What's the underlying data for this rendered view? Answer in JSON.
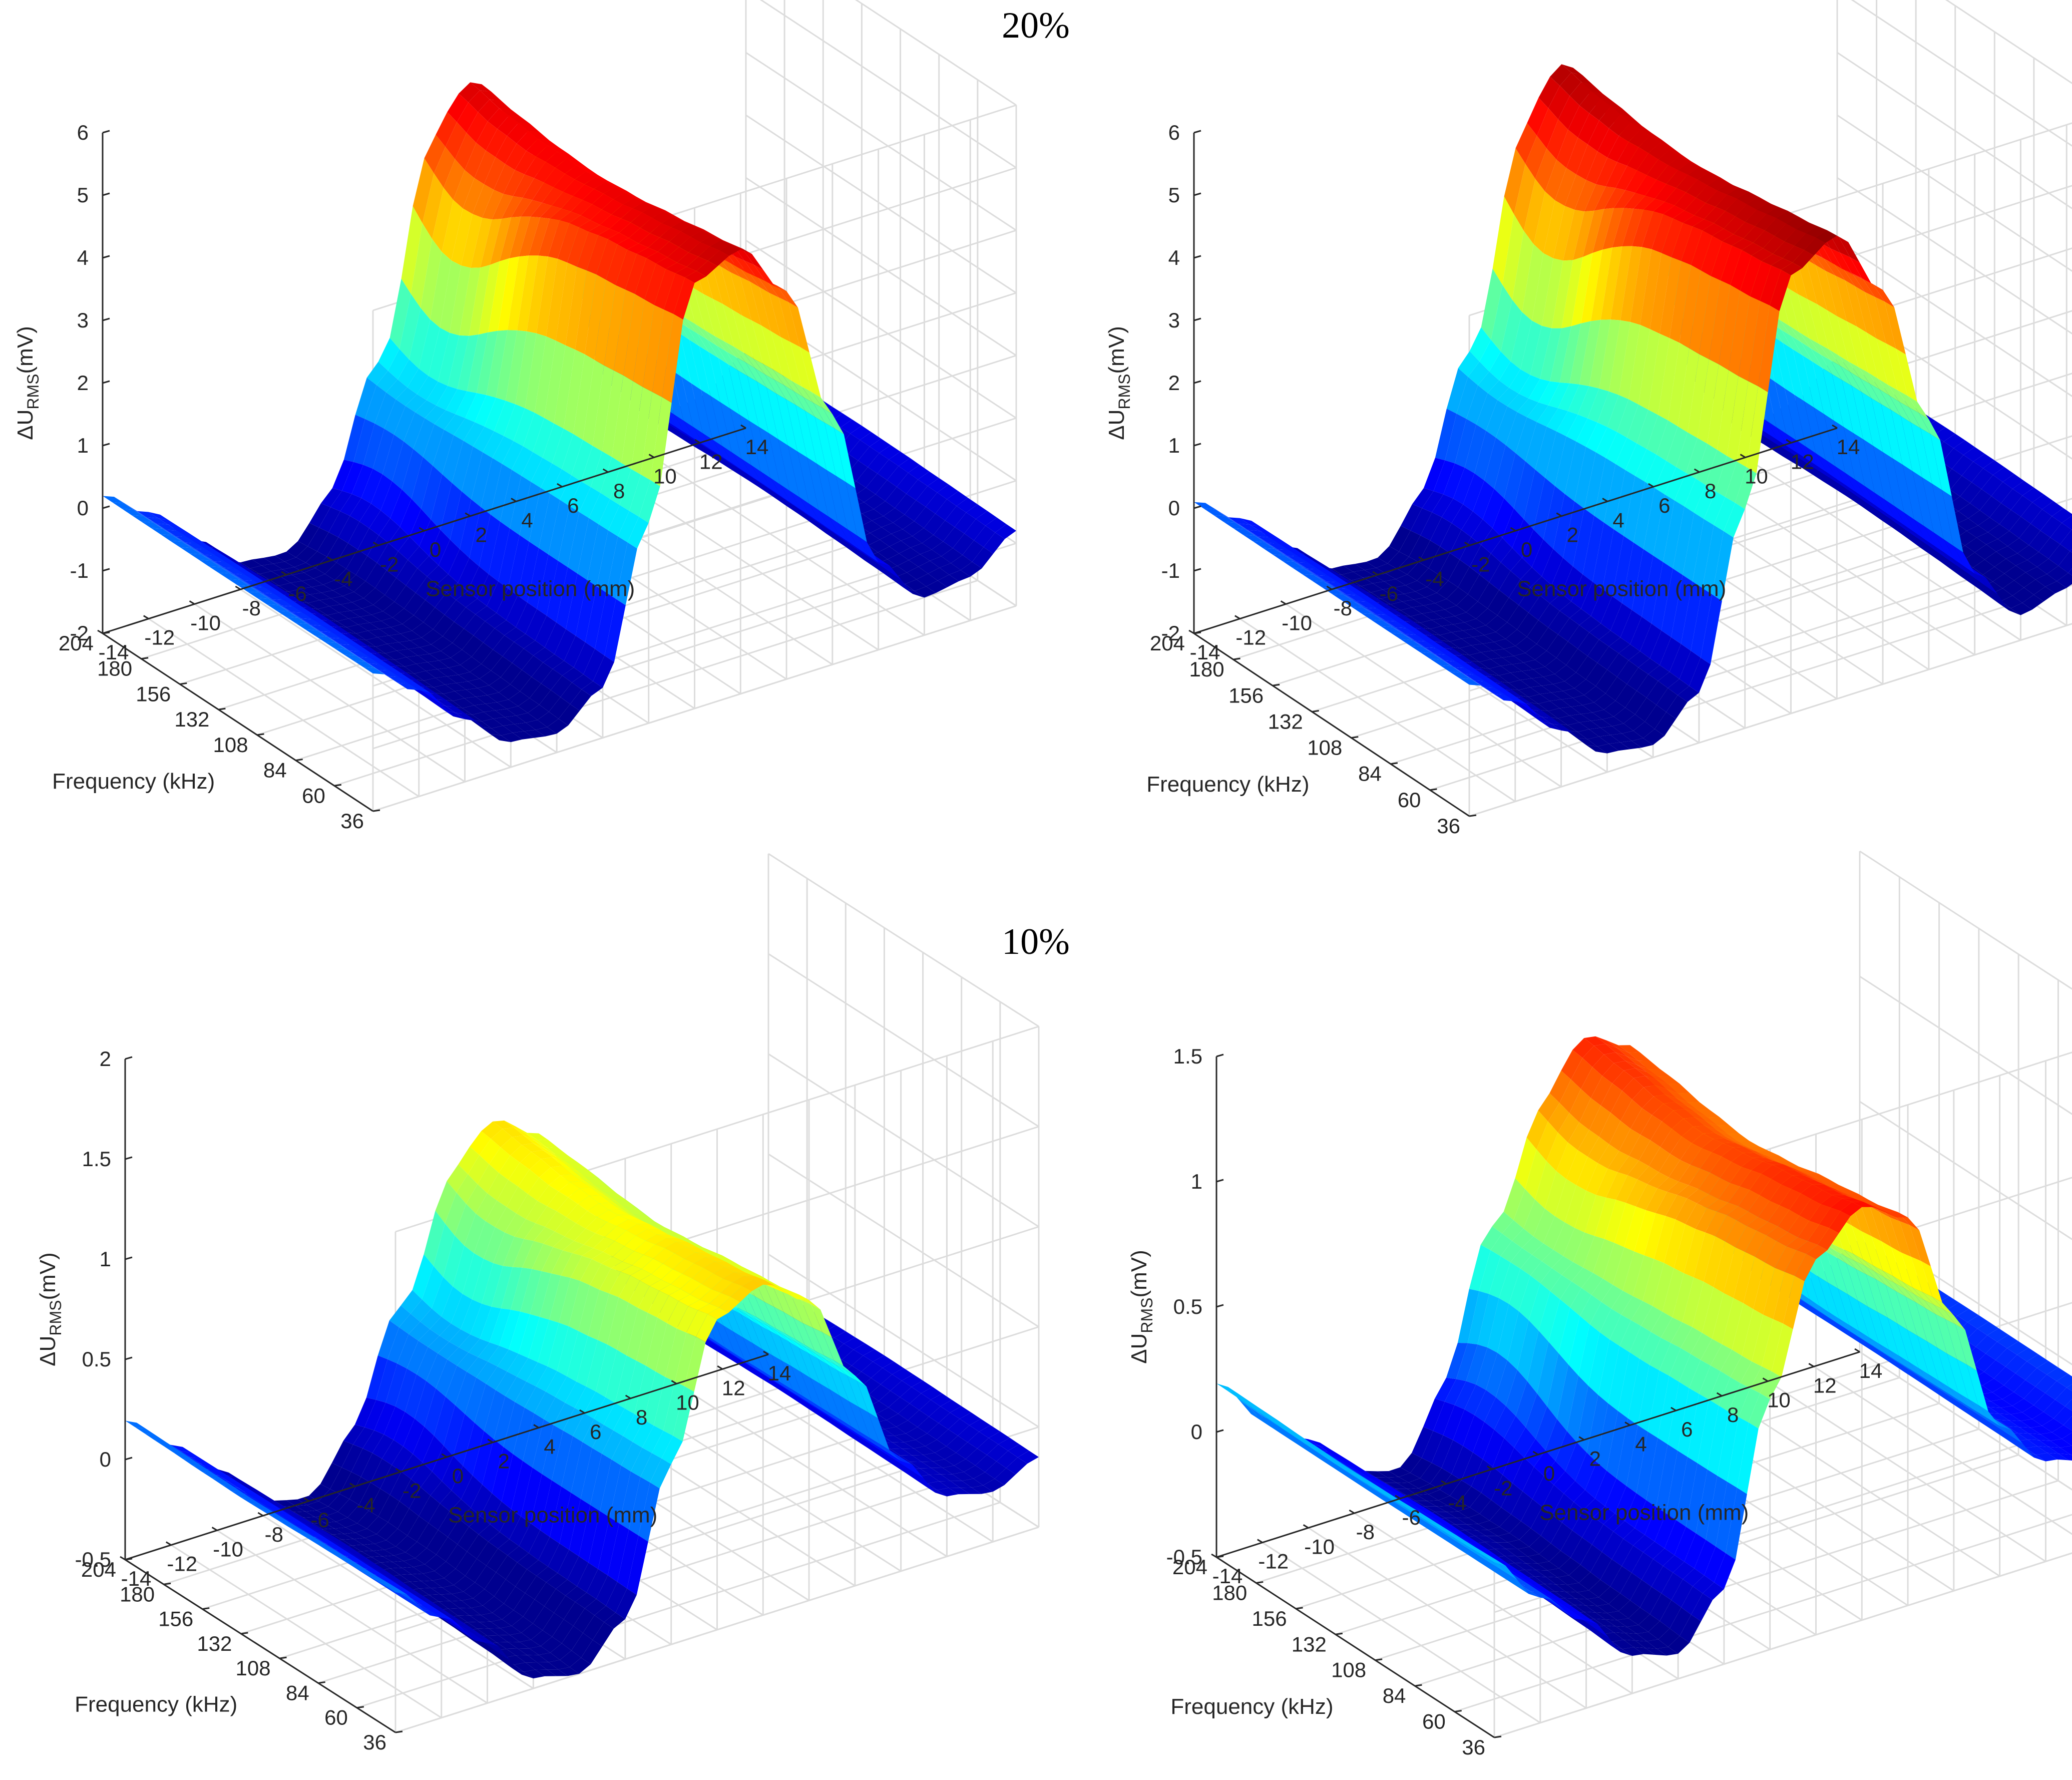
{
  "figure": {
    "sections": [
      {
        "label": "20%"
      },
      {
        "label": "10%"
      }
    ]
  },
  "chart_data": [
    {
      "type": "surface",
      "section": "20%",
      "panel": "left",
      "xlabel": "Sensor position (mm)",
      "ylabel": "Frequency (kHz)",
      "zlabel": "ΔU_RMS(mV)",
      "zlabel_main": "ΔU",
      "zlabel_sub": "RMS",
      "zlabel_tail": "(mV)",
      "x_ticks": [
        "-14",
        "-12",
        "-10",
        "-8",
        "-6",
        "-4",
        "-2",
        "0",
        "2",
        "4",
        "6",
        "8",
        "10",
        "12",
        "14"
      ],
      "y_ticks": [
        "204",
        "180",
        "156",
        "132",
        "108",
        "84",
        "60",
        "36"
      ],
      "z_ticks": [
        "-2",
        "-1",
        "0",
        "1",
        "2",
        "3",
        "4",
        "5",
        "6"
      ],
      "xlim": [
        -14,
        14
      ],
      "ylim": [
        36,
        204
      ],
      "zlim": [
        -2,
        6
      ],
      "colormap": [
        "#00008f",
        "#0000ff",
        "#0080ff",
        "#00ffff",
        "#80ff80",
        "#ffff00",
        "#ff8000",
        "#ff0000",
        "#800000"
      ],
      "profile": {
        "x": [
          -14,
          -12,
          -10,
          -8,
          -6,
          -4,
          -2,
          0,
          2,
          4,
          6,
          8,
          10,
          12,
          14
        ],
        "z": [
          0.2,
          -0.3,
          -1.0,
          -1.6,
          -1.7,
          -1.2,
          1.2,
          4.8,
          5.1,
          4.2,
          2.0,
          -0.6,
          -1.4,
          -1.3,
          -0.8
        ]
      },
      "freq_profile": {
        "y": [
          36,
          60,
          84,
          108,
          132,
          156,
          180,
          204
        ],
        "scale": [
          1.0,
          0.98,
          0.96,
          0.94,
          0.93,
          0.94,
          0.96,
          0.98
        ]
      },
      "interior_dip": {
        "x": -2,
        "y": 180,
        "z": 0.6
      }
    },
    {
      "type": "surface",
      "section": "20%",
      "panel": "right",
      "xlabel": "Sensor position (mm)",
      "ylabel": "Frequency (kHz)",
      "zlabel": "ΔU_RMS(mV)",
      "zlabel_main": "ΔU",
      "zlabel_sub": "RMS",
      "zlabel_tail": "(mV)",
      "x_ticks": [
        "-14",
        "-12",
        "-10",
        "-8",
        "-6",
        "-4",
        "-2",
        "0",
        "2",
        "4",
        "6",
        "8",
        "10",
        "12",
        "14"
      ],
      "y_ticks": [
        "204",
        "180",
        "156",
        "132",
        "108",
        "84",
        "60",
        "36"
      ],
      "z_ticks": [
        "-2",
        "-1",
        "0",
        "1",
        "2",
        "3",
        "4",
        "5",
        "6"
      ],
      "xlim": [
        -14,
        14
      ],
      "ylim": [
        36,
        204
      ],
      "zlim": [
        -2,
        6
      ],
      "colormap": [
        "#00008f",
        "#0000ff",
        "#0080ff",
        "#00ffff",
        "#80ff80",
        "#ffff00",
        "#ff8000",
        "#ff0000",
        "#800000"
      ],
      "profile": {
        "x": [
          -14,
          -12,
          -10,
          -8,
          -6,
          -4,
          -2,
          0,
          2,
          4,
          6,
          8,
          10,
          12,
          14
        ],
        "z": [
          0.1,
          -0.4,
          -1.1,
          -1.7,
          -1.8,
          -1.2,
          1.5,
          5.0,
          5.4,
          4.3,
          2.0,
          -0.7,
          -1.6,
          -1.4,
          -0.9
        ]
      },
      "freq_profile": {
        "y": [
          36,
          60,
          84,
          108,
          132,
          156,
          180,
          204
        ],
        "scale": [
          1.0,
          0.98,
          0.96,
          0.94,
          0.93,
          0.94,
          0.96,
          0.98
        ]
      },
      "interior_dip": {
        "x": -2,
        "y": 180,
        "z": 0.6
      }
    },
    {
      "type": "surface",
      "section": "10%",
      "panel": "left",
      "xlabel": "Sensor position (mm)",
      "ylabel": "Frequency (kHz)",
      "zlabel": "ΔU_RMS(mV)",
      "zlabel_main": "ΔU",
      "zlabel_sub": "RMS",
      "zlabel_tail": "(mV)",
      "x_ticks": [
        "-14",
        "-12",
        "-10",
        "-8",
        "-6",
        "-4",
        "-2",
        "0",
        "2",
        "4",
        "6",
        "8",
        "10",
        "12",
        "14"
      ],
      "y_ticks": [
        "204",
        "180",
        "156",
        "132",
        "108",
        "84",
        "60",
        "36"
      ],
      "z_ticks": [
        "-0.5",
        "0",
        "0.5",
        "1",
        "1.5",
        "2"
      ],
      "xlim": [
        -14,
        14
      ],
      "ylim": [
        36,
        204
      ],
      "zlim": [
        -0.5,
        2
      ],
      "colormap": [
        "#00008f",
        "#0000ff",
        "#0080ff",
        "#00ffff",
        "#80ff80",
        "#ffff00",
        "#ff8000",
        "#ff0000",
        "#800000"
      ],
      "profile": {
        "x": [
          -14,
          -12,
          -10,
          -8,
          -6,
          -4,
          -2,
          0,
          2,
          4,
          6,
          8,
          10,
          12,
          14
        ],
        "z": [
          0.2,
          0.0,
          -0.2,
          -0.45,
          -0.5,
          -0.3,
          0.4,
          1.05,
          1.15,
          1.0,
          0.55,
          0.05,
          -0.2,
          -0.25,
          -0.15
        ]
      },
      "freq_profile": {
        "y": [
          36,
          60,
          84,
          108,
          132,
          156,
          180,
          204
        ],
        "scale": [
          1.0,
          0.97,
          0.95,
          0.92,
          0.9,
          0.92,
          0.95,
          0.97
        ]
      },
      "interior_dip": {
        "x": -2,
        "y": 180,
        "z": 0.25
      }
    },
    {
      "type": "surface",
      "section": "10%",
      "panel": "right",
      "xlabel": "Sensor position (mm)",
      "ylabel": "Frequency (kHz)",
      "zlabel": "ΔU_RMS(mV)",
      "zlabel_main": "ΔU",
      "zlabel_sub": "RMS",
      "zlabel_tail": "(mV)",
      "x_ticks": [
        "-14",
        "-12",
        "-10",
        "-8",
        "-6",
        "-4",
        "-2",
        "0",
        "2",
        "4",
        "6",
        "8",
        "10",
        "12",
        "14"
      ],
      "y_ticks": [
        "204",
        "180",
        "156",
        "132",
        "108",
        "84",
        "60",
        "36"
      ],
      "z_ticks": [
        "-0.5",
        "0",
        "0.5",
        "1",
        "1.5"
      ],
      "xlim": [
        -14,
        14
      ],
      "ylim": [
        36,
        204
      ],
      "zlim": [
        -0.5,
        1.5
      ],
      "colormap": [
        "#00008f",
        "#0000ff",
        "#0080ff",
        "#00ffff",
        "#80ff80",
        "#ffff00",
        "#ff8000",
        "#ff0000",
        "#800000"
      ],
      "profile": {
        "x": [
          -14,
          -12,
          -10,
          -8,
          -6,
          -4,
          -2,
          0,
          2,
          4,
          6,
          8,
          10,
          12,
          14
        ],
        "z": [
          0.2,
          0.0,
          -0.15,
          -0.35,
          -0.4,
          -0.2,
          0.5,
          1.0,
          1.15,
          1.05,
          0.6,
          0.1,
          -0.1,
          -0.15,
          -0.05
        ]
      },
      "freq_profile": {
        "y": [
          36,
          60,
          84,
          108,
          132,
          156,
          180,
          204
        ],
        "scale": [
          1.0,
          0.97,
          0.95,
          0.92,
          0.9,
          0.92,
          0.95,
          0.97
        ]
      },
      "interior_dip": {
        "x": -2,
        "y": 180,
        "z": 0.45
      }
    }
  ]
}
